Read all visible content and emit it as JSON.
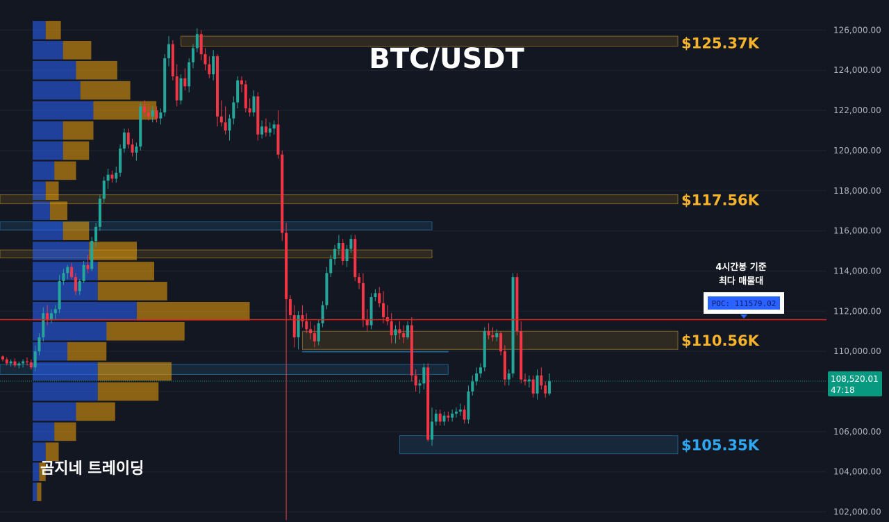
{
  "colors": {
    "background": "#131722",
    "grid": "#1f2430",
    "bull": "#26a69a",
    "bear": "#f23645",
    "vp_buy": "#2962ff",
    "vp_sell": "#f0a30a",
    "poc_line": "#e0261f",
    "level_up": "#f7b32b",
    "level_down": "#2ea8f2",
    "price_tag": "#089981"
  },
  "chart_data": {
    "type": "candlestick",
    "title": "BTC/USDT",
    "watermark": "곰지네 트레이딩",
    "ylim": [
      101500,
      127500
    ],
    "y_ticks": [
      "126,000.00",
      "124,000.00",
      "122,000.00",
      "120,000.00",
      "118,000.00",
      "116,000.00",
      "114,000.00",
      "112,000.00",
      "110,000.00",
      "108,000.00",
      "106,000.00",
      "104,000.00",
      "102,000.00"
    ],
    "y_tick_values": [
      126000,
      124000,
      122000,
      120000,
      118000,
      116000,
      114000,
      112000,
      110000,
      108000,
      106000,
      104000,
      102000
    ],
    "current_price": {
      "value": 108520.01,
      "label": "108,520.01",
      "countdown": "47:18"
    },
    "poc": {
      "value": 111579.02,
      "label": "POC: 111579.02",
      "note_line1": "4시간봉 기준",
      "note_line2": "최다 매물대"
    },
    "levels": [
      {
        "label": "$125.37K",
        "value": 125370,
        "color": "#f7b32b"
      },
      {
        "label": "$117.56K",
        "value": 117560,
        "color": "#f7b32b"
      },
      {
        "label": "$110.56K",
        "value": 110560,
        "color": "#f7b32b"
      },
      {
        "label": "$105.35K",
        "value": 105350,
        "color": "#2ea8f2"
      }
    ],
    "zones": [
      {
        "from": 125700,
        "to": 125200,
        "start": 44,
        "end": 999,
        "color": "#f7b32b"
      },
      {
        "from": 117800,
        "to": 117350,
        "start": 0,
        "end": 999,
        "color": "#f7b32b"
      },
      {
        "from": 116450,
        "to": 116050,
        "start": 0,
        "end": 106,
        "color": "#2ea8f2"
      },
      {
        "from": 115050,
        "to": 114650,
        "start": 0,
        "end": 106,
        "color": "#f7b32b"
      },
      {
        "from": 111000,
        "to": 110100,
        "start": 74,
        "end": 999,
        "color": "#f7b32b"
      },
      {
        "from": 110000,
        "to": 110000,
        "start": 74,
        "end": 110,
        "color": "#2ea8f2"
      },
      {
        "from": 109350,
        "to": 108850,
        "start": 0,
        "end": 110,
        "color": "#2ea8f2"
      },
      {
        "from": 105800,
        "to": 104900,
        "start": 98,
        "end": 999,
        "color": "#2ea8f2"
      }
    ],
    "volume_profile": [
      {
        "price": 126000,
        "buy": 0.06,
        "sell": 0.07
      },
      {
        "price": 125000,
        "buy": 0.14,
        "sell": 0.13
      },
      {
        "price": 124000,
        "buy": 0.2,
        "sell": 0.19
      },
      {
        "price": 123000,
        "buy": 0.22,
        "sell": 0.23
      },
      {
        "price": 122000,
        "buy": 0.28,
        "sell": 0.29
      },
      {
        "price": 121000,
        "buy": 0.14,
        "sell": 0.14
      },
      {
        "price": 120000,
        "buy": 0.14,
        "sell": 0.12
      },
      {
        "price": 119000,
        "buy": 0.1,
        "sell": 0.1
      },
      {
        "price": 118000,
        "buy": 0.06,
        "sell": 0.06
      },
      {
        "price": 117000,
        "buy": 0.08,
        "sell": 0.08
      },
      {
        "price": 116000,
        "buy": 0.14,
        "sell": 0.12
      },
      {
        "price": 115000,
        "buy": 0.26,
        "sell": 0.22
      },
      {
        "price": 114000,
        "buy": 0.3,
        "sell": 0.26
      },
      {
        "price": 113000,
        "buy": 0.3,
        "sell": 0.32
      },
      {
        "price": 112000,
        "buy": 0.48,
        "sell": 0.52
      },
      {
        "price": 111000,
        "buy": 0.34,
        "sell": 0.36
      },
      {
        "price": 110000,
        "buy": 0.16,
        "sell": 0.18
      },
      {
        "price": 109000,
        "buy": 0.3,
        "sell": 0.34
      },
      {
        "price": 108000,
        "buy": 0.3,
        "sell": 0.28
      },
      {
        "price": 107000,
        "buy": 0.2,
        "sell": 0.18
      },
      {
        "price": 106000,
        "buy": 0.1,
        "sell": 0.1
      },
      {
        "price": 105000,
        "buy": 0.06,
        "sell": 0.06
      },
      {
        "price": 104000,
        "buy": 0.03,
        "sell": 0.03
      },
      {
        "price": 103000,
        "buy": 0.02,
        "sell": 0.02
      }
    ],
    "candles": [
      [
        109750,
        109800,
        109500,
        109600
      ],
      [
        109600,
        109700,
        109300,
        109400
      ],
      [
        109400,
        109600,
        109250,
        109500
      ],
      [
        109500,
        109650,
        109200,
        109300
      ],
      [
        109300,
        109500,
        109150,
        109400
      ],
      [
        109400,
        109600,
        109200,
        109500
      ],
      [
        109500,
        109700,
        109300,
        109450
      ],
      [
        109450,
        109600,
        109100,
        109200
      ],
      [
        109200,
        110300,
        109000,
        110000
      ],
      [
        110000,
        110900,
        109800,
        110700
      ],
      [
        110700,
        112200,
        110500,
        111900
      ],
      [
        111900,
        112300,
        111300,
        111600
      ],
      [
        111600,
        112100,
        111400,
        111900
      ],
      [
        111900,
        112300,
        111600,
        112100
      ],
      [
        112100,
        113800,
        111900,
        113500
      ],
      [
        113500,
        114100,
        113300,
        113900
      ],
      [
        113900,
        114300,
        113600,
        114200
      ],
      [
        114200,
        114400,
        113600,
        113700
      ],
      [
        113700,
        113900,
        112800,
        113000
      ],
      [
        113000,
        113600,
        112800,
        113500
      ],
      [
        113500,
        114500,
        113400,
        114300
      ],
      [
        114300,
        114800,
        113900,
        114100
      ],
      [
        114100,
        115700,
        114000,
        115500
      ],
      [
        115500,
        116400,
        115200,
        116200
      ],
      [
        116200,
        117800,
        116000,
        117600
      ],
      [
        117600,
        118700,
        117400,
        118500
      ],
      [
        118500,
        119100,
        118100,
        118800
      ],
      [
        118800,
        119000,
        118400,
        118600
      ],
      [
        118600,
        119200,
        118400,
        118900
      ],
      [
        118900,
        120300,
        118700,
        120100
      ],
      [
        120100,
        121100,
        119900,
        120900
      ],
      [
        120900,
        121100,
        120100,
        120300
      ],
      [
        120300,
        120600,
        119700,
        119900
      ],
      [
        119900,
        120400,
        119500,
        120200
      ],
      [
        120200,
        122400,
        120000,
        122200
      ],
      [
        122200,
        122500,
        121700,
        121900
      ],
      [
        121900,
        122300,
        121500,
        121700
      ],
      [
        121700,
        122200,
        121400,
        122000
      ],
      [
        122000,
        122200,
        121400,
        121600
      ],
      [
        121600,
        122100,
        121300,
        121900
      ],
      [
        121900,
        124800,
        121700,
        124600
      ],
      [
        124600,
        125700,
        124200,
        125300
      ],
      [
        125300,
        125500,
        123500,
        123700
      ],
      [
        123700,
        124300,
        122200,
        122500
      ],
      [
        122500,
        123800,
        122300,
        123600
      ],
      [
        123600,
        124100,
        123000,
        123200
      ],
      [
        123200,
        124600,
        122900,
        124400
      ],
      [
        124400,
        125300,
        124100,
        125100
      ],
      [
        125100,
        126100,
        124900,
        125800
      ],
      [
        125800,
        126000,
        124500,
        124800
      ],
      [
        124800,
        125100,
        124000,
        124300
      ],
      [
        124300,
        124700,
        123600,
        123800
      ],
      [
        123800,
        125000,
        123500,
        124700
      ],
      [
        124700,
        124800,
        121200,
        121700
      ],
      [
        121700,
        122500,
        121200,
        121400
      ],
      [
        121400,
        122200,
        120800,
        121000
      ],
      [
        121000,
        121800,
        120500,
        121600
      ],
      [
        121600,
        122700,
        121300,
        122400
      ],
      [
        122400,
        123700,
        122100,
        123500
      ],
      [
        123500,
        123700,
        122900,
        123300
      ],
      [
        123300,
        123500,
        121900,
        122100
      ],
      [
        122100,
        122600,
        121700,
        121900
      ],
      [
        121900,
        123000,
        121700,
        122700
      ],
      [
        122700,
        122900,
        120500,
        120800
      ],
      [
        120800,
        121500,
        120600,
        121200
      ],
      [
        121200,
        121600,
        120700,
        120900
      ],
      [
        120900,
        121400,
        120700,
        121100
      ],
      [
        121100,
        121500,
        120800,
        121300
      ],
      [
        121300,
        122000,
        119600,
        119800
      ],
      [
        119800,
        120000,
        115500,
        115900
      ],
      [
        115900,
        116400,
        101600,
        112600
      ],
      [
        112600,
        112800,
        111600,
        111800
      ],
      [
        111800,
        112300,
        110200,
        110700
      ],
      [
        110700,
        112000,
        110100,
        111800
      ],
      [
        111800,
        112300,
        111200,
        111500
      ],
      [
        111500,
        111900,
        110900,
        111100
      ],
      [
        111100,
        111500,
        110600,
        110900
      ],
      [
        110900,
        111300,
        110200,
        110500
      ],
      [
        110500,
        111600,
        110300,
        111400
      ],
      [
        111400,
        112500,
        111200,
        112300
      ],
      [
        112300,
        114200,
        112100,
        113900
      ],
      [
        113900,
        114800,
        113700,
        114600
      ],
      [
        114600,
        115300,
        114300,
        115100
      ],
      [
        115100,
        115800,
        114800,
        115400
      ],
      [
        115400,
        115600,
        114300,
        114500
      ],
      [
        114500,
        115300,
        114200,
        115100
      ],
      [
        115100,
        115800,
        114900,
        115600
      ],
      [
        115600,
        115800,
        113500,
        113700
      ],
      [
        113700,
        113900,
        113100,
        113400
      ],
      [
        113400,
        113900,
        111200,
        111600
      ],
      [
        111600,
        112100,
        111000,
        111300
      ],
      [
        111300,
        112900,
        111100,
        112700
      ],
      [
        112700,
        113100,
        112500,
        112900
      ],
      [
        112900,
        113200,
        112200,
        112400
      ],
      [
        112400,
        113000,
        111400,
        111700
      ],
      [
        111700,
        112300,
        111300,
        111500
      ],
      [
        111500,
        111900,
        110400,
        110800
      ],
      [
        110800,
        111300,
        110400,
        111100
      ],
      [
        111100,
        111500,
        110600,
        110900
      ],
      [
        110900,
        111300,
        110400,
        110700
      ],
      [
        110700,
        111500,
        110600,
        111300
      ],
      [
        111300,
        111700,
        108500,
        108800
      ],
      [
        108800,
        109100,
        108000,
        108300
      ],
      [
        108300,
        108600,
        107900,
        108400
      ],
      [
        108400,
        109400,
        108100,
        109200
      ],
      [
        109200,
        109400,
        105500,
        105600
      ],
      [
        105600,
        107200,
        105300,
        106500
      ],
      [
        106500,
        107100,
        106300,
        106900
      ],
      [
        106900,
        107100,
        106300,
        106500
      ],
      [
        106500,
        107000,
        106300,
        106800
      ],
      [
        106800,
        107000,
        106500,
        106700
      ],
      [
        106700,
        107100,
        106500,
        106900
      ],
      [
        106900,
        107200,
        106700,
        107000
      ],
      [
        107000,
        107400,
        106800,
        107100
      ],
      [
        107100,
        107300,
        106400,
        106600
      ],
      [
        106600,
        108300,
        106400,
        108000
      ],
      [
        108000,
        108800,
        107800,
        108500
      ],
      [
        108500,
        109200,
        108300,
        108900
      ],
      [
        108900,
        109400,
        108700,
        109200
      ],
      [
        109200,
        111200,
        109000,
        111000
      ],
      [
        111000,
        111400,
        110600,
        110800
      ],
      [
        110800,
        111200,
        110500,
        110700
      ],
      [
        110700,
        111100,
        110500,
        110900
      ],
      [
        110900,
        111000,
        109800,
        110000
      ],
      [
        110000,
        110300,
        108300,
        108600
      ],
      [
        108600,
        109100,
        108300,
        108900
      ],
      [
        108900,
        113900,
        108700,
        113700
      ],
      [
        113700,
        113900,
        110800,
        111000
      ],
      [
        111000,
        111500,
        108400,
        108600
      ],
      [
        108600,
        108900,
        108300,
        108500
      ],
      [
        108500,
        108800,
        108200,
        108600
      ],
      [
        108600,
        108800,
        107700,
        107900
      ],
      [
        107900,
        109100,
        107600,
        108800
      ],
      [
        108800,
        109200,
        108100,
        108300
      ],
      [
        108300,
        108500,
        107700,
        107900
      ],
      [
        107900,
        108900,
        107800,
        108520
      ]
    ]
  }
}
